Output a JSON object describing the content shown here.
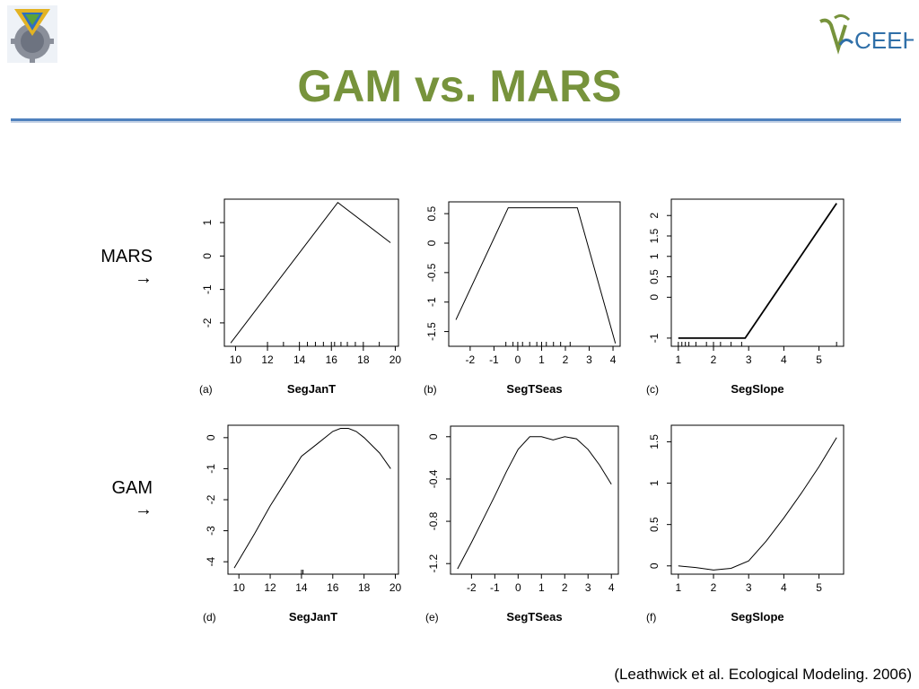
{
  "slide": {
    "title": "GAM vs. MARS",
    "citation": "(Leathwick et al. Ecological Modeling. 2006)",
    "row_labels": [
      {
        "label": "MARS",
        "arrow": "→"
      },
      {
        "label": "GAM",
        "arrow": "→"
      }
    ],
    "logo_right_text": "CEEH",
    "colors": {
      "title": "#77933c",
      "rule": "#4f81bd",
      "curve": "#000000"
    }
  },
  "chart_data": [
    {
      "type": "line",
      "panel": "(a)",
      "xlabel": "SegJanT",
      "xlim": [
        9.3,
        20.2
      ],
      "ylim": [
        -2.7,
        1.7
      ],
      "xticks": [
        10,
        12,
        14,
        16,
        18,
        20
      ],
      "yticks": [
        1,
        0,
        -1,
        -2
      ],
      "x": [
        9.7,
        16.4,
        19.7
      ],
      "y": [
        -2.6,
        1.6,
        0.4
      ],
      "rug": [
        12,
        13,
        14,
        14.5,
        15,
        15.5,
        16,
        16.2,
        16.6,
        17,
        17.5,
        18,
        19
      ]
    },
    {
      "type": "line",
      "panel": "(b)",
      "xlabel": "SegTSeas",
      "xlim": [
        -2.9,
        4.3
      ],
      "ylim": [
        -1.75,
        0.7
      ],
      "xticks": [
        -2,
        -1,
        0,
        1,
        2,
        3,
        4
      ],
      "yticks": [
        0.5,
        0.0,
        -0.5,
        -1.0,
        -1.5
      ],
      "x": [
        -2.6,
        -0.4,
        2.5,
        4.1
      ],
      "y": [
        -1.3,
        0.6,
        0.6,
        -1.7
      ],
      "rug": [
        -0.5,
        -0.2,
        0,
        0.2,
        0.5,
        0.8,
        1,
        1.2,
        1.5,
        1.8,
        2.2
      ]
    },
    {
      "type": "line",
      "panel": "(c)",
      "xlabel": "SegSlope",
      "xlim": [
        0.8,
        5.7
      ],
      "ylim": [
        -1.2,
        2.4
      ],
      "xticks": [
        1,
        2,
        3,
        4,
        5
      ],
      "yticks": [
        2.0,
        1.5,
        1.0,
        0.5,
        0.0,
        -1.0
      ],
      "x": [
        1.0,
        2.9,
        5.5
      ],
      "y": [
        -1.0,
        -1.0,
        2.3
      ],
      "rug": [
        1,
        1.1,
        1.2,
        1.3,
        1.5,
        1.8,
        2,
        2.2,
        2.5,
        2.8,
        5.5
      ]
    },
    {
      "type": "line",
      "panel": "(d)",
      "xlabel": "SegJanT",
      "xlim": [
        9.3,
        20.2
      ],
      "ylim": [
        -4.4,
        0.4
      ],
      "xticks": [
        10,
        12,
        14,
        16,
        18,
        20
      ],
      "yticks": [
        0,
        -1,
        -2,
        -3,
        -4
      ],
      "x": [
        9.7,
        11,
        12,
        13,
        14,
        15,
        16,
        16.5,
        17,
        17.5,
        18,
        19,
        19.7
      ],
      "y": [
        -4.2,
        -3.1,
        -2.2,
        -1.4,
        -0.6,
        -0.2,
        0.2,
        0.3,
        0.3,
        0.2,
        0,
        -0.5,
        -1.0
      ],
      "rug": [
        14,
        14.1
      ]
    },
    {
      "type": "line",
      "panel": "(e)",
      "xlabel": "SegTSeas",
      "xlim": [
        -2.9,
        4.3
      ],
      "ylim": [
        -1.3,
        0.1
      ],
      "xticks": [
        -2,
        -1,
        0,
        1,
        2,
        3,
        4
      ],
      "yticks": [
        0.0,
        -0.4,
        -0.8,
        -1.2
      ],
      "x": [
        -2.6,
        -2,
        -1.5,
        -1,
        -0.5,
        0,
        0.5,
        1,
        1.5,
        2,
        2.5,
        3,
        3.5,
        4
      ],
      "y": [
        -1.25,
        -1.0,
        -0.78,
        -0.56,
        -0.33,
        -0.12,
        0.0,
        0.0,
        -0.03,
        0.0,
        -0.02,
        -0.12,
        -0.27,
        -0.45
      ],
      "rug": []
    },
    {
      "type": "line",
      "panel": "(f)",
      "xlabel": "SegSlope",
      "xlim": [
        0.8,
        5.7
      ],
      "ylim": [
        -0.1,
        1.7
      ],
      "xticks": [
        1,
        2,
        3,
        4,
        5
      ],
      "yticks": [
        0.0,
        0.5,
        1.0,
        1.5
      ],
      "x": [
        1,
        1.5,
        2,
        2.5,
        3,
        3.5,
        4,
        4.5,
        5,
        5.5
      ],
      "y": [
        0,
        -0.02,
        -0.05,
        -0.03,
        0.06,
        0.3,
        0.58,
        0.88,
        1.2,
        1.55
      ],
      "rug": []
    }
  ]
}
